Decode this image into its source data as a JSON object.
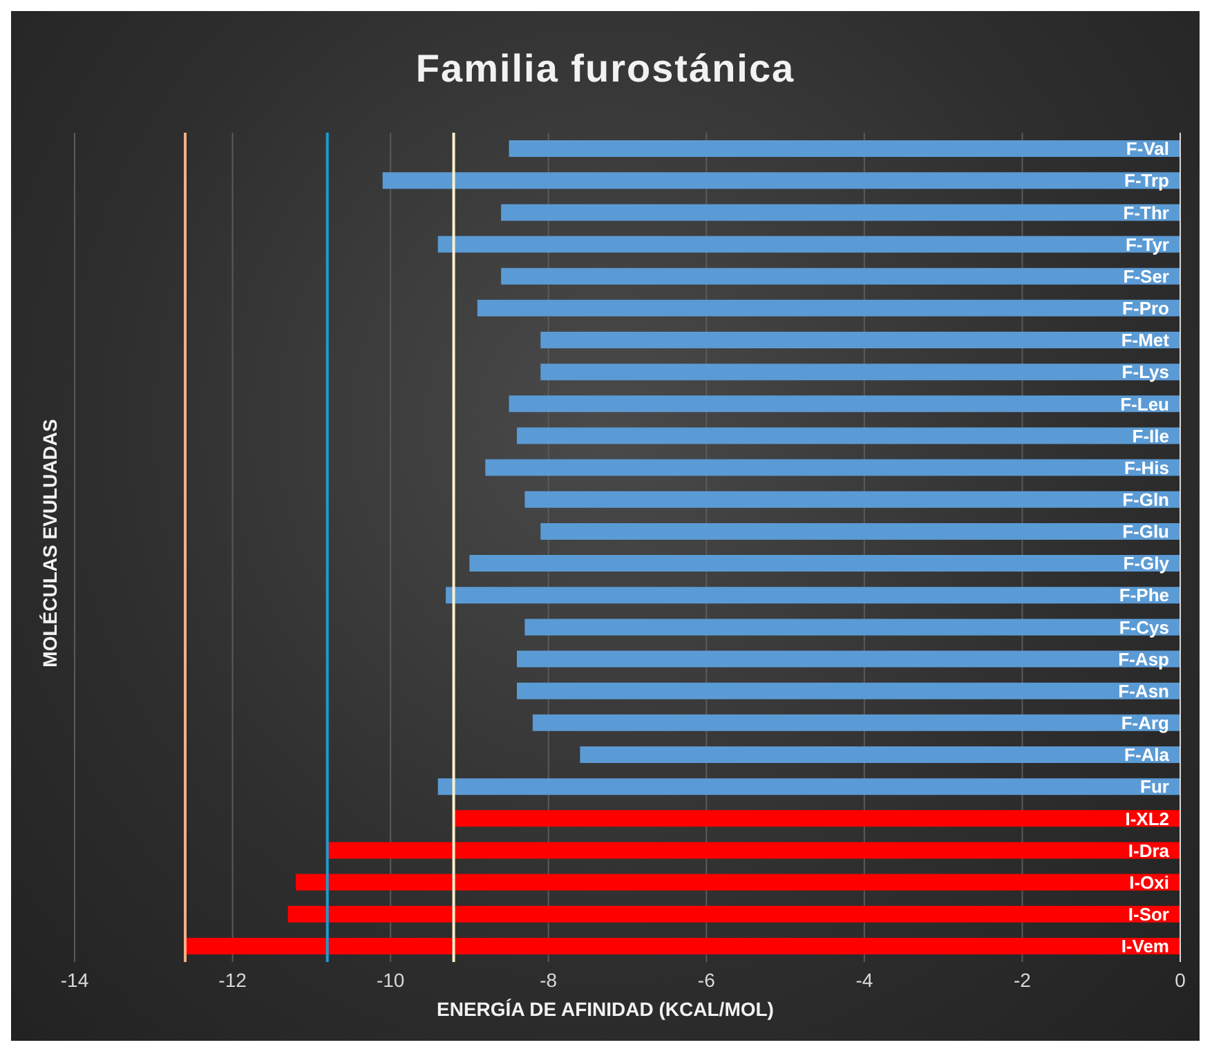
{
  "chart_data": {
    "type": "bar",
    "orientation": "horizontal",
    "title": "Familia furostánica",
    "xlabel": "ENERGÍA DE AFINIDAD (KCAL/MOL)",
    "ylabel": "MOLÉCULAS EVULUADAS",
    "categories": [
      "F-Val",
      "F-Trp",
      "F-Thr",
      "F-Tyr",
      "F-Ser",
      "F-Pro",
      "F-Met",
      "F-Lys",
      "F-Leu",
      "F-Ile",
      "F-His",
      "F-Gln",
      "F-Glu",
      "F-Gly",
      "F-Phe",
      "F-Cys",
      "F-Asp",
      "F-Asn",
      "F-Arg",
      "F-Ala",
      "Fur",
      "I-XL2",
      "I-Dra",
      "I-Oxi",
      "I-Sor",
      "I-Vem"
    ],
    "values": [
      -8.5,
      -10.1,
      -8.6,
      -9.4,
      -8.6,
      -8.9,
      -8.1,
      -8.1,
      -8.5,
      -8.4,
      -8.8,
      -8.3,
      -8.1,
      -9.0,
      -9.3,
      -8.3,
      -8.4,
      -8.4,
      -8.2,
      -7.6,
      -9.4,
      -9.2,
      -10.8,
      -11.2,
      -11.3,
      -12.6
    ],
    "colors": [
      "#5b9bd5",
      "#5b9bd5",
      "#5b9bd5",
      "#5b9bd5",
      "#5b9bd5",
      "#5b9bd5",
      "#5b9bd5",
      "#5b9bd5",
      "#5b9bd5",
      "#5b9bd5",
      "#5b9bd5",
      "#5b9bd5",
      "#5b9bd5",
      "#5b9bd5",
      "#5b9bd5",
      "#5b9bd5",
      "#5b9bd5",
      "#5b9bd5",
      "#5b9bd5",
      "#5b9bd5",
      "#5b9bd5",
      "#ff0000",
      "#ff0000",
      "#ff0000",
      "#ff0000",
      "#ff0000"
    ],
    "xlim": [
      -14,
      0
    ],
    "xticks": [
      -14,
      -12,
      -10,
      -8,
      -6,
      -4,
      -2,
      0
    ],
    "grid": "x",
    "legend": false,
    "ref_lines": [
      {
        "axis": "x",
        "value": -12.6,
        "color": "#f4b183"
      },
      {
        "axis": "x",
        "value": -10.8,
        "color": "#1f9bd1"
      },
      {
        "axis": "x",
        "value": -9.2,
        "color": "#fff2cc"
      }
    ]
  }
}
